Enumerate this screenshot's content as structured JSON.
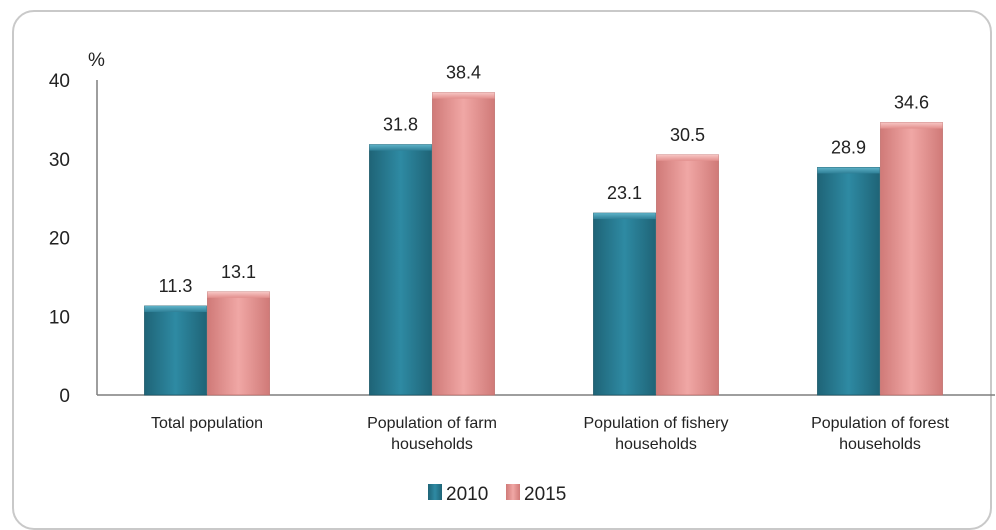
{
  "chart_data": {
    "type": "bar",
    "title": "",
    "xlabel": "",
    "ylabel": "%",
    "ylim": [
      0,
      40
    ],
    "yticks": [
      0,
      10,
      20,
      30,
      40
    ],
    "grid": false,
    "legend_position": "bottom",
    "categories": [
      [
        "Total population"
      ],
      [
        "Population of farm",
        "households"
      ],
      [
        "Population of fishery",
        "households"
      ],
      [
        "Population of forest",
        "households"
      ]
    ],
    "series": [
      {
        "name": "2010",
        "values": [
          11.3,
          31.8,
          23.1,
          28.9
        ],
        "color": "#2e7f96"
      },
      {
        "name": "2015",
        "values": [
          13.1,
          38.4,
          30.5,
          34.6
        ],
        "color": "#e28f8d"
      }
    ]
  }
}
